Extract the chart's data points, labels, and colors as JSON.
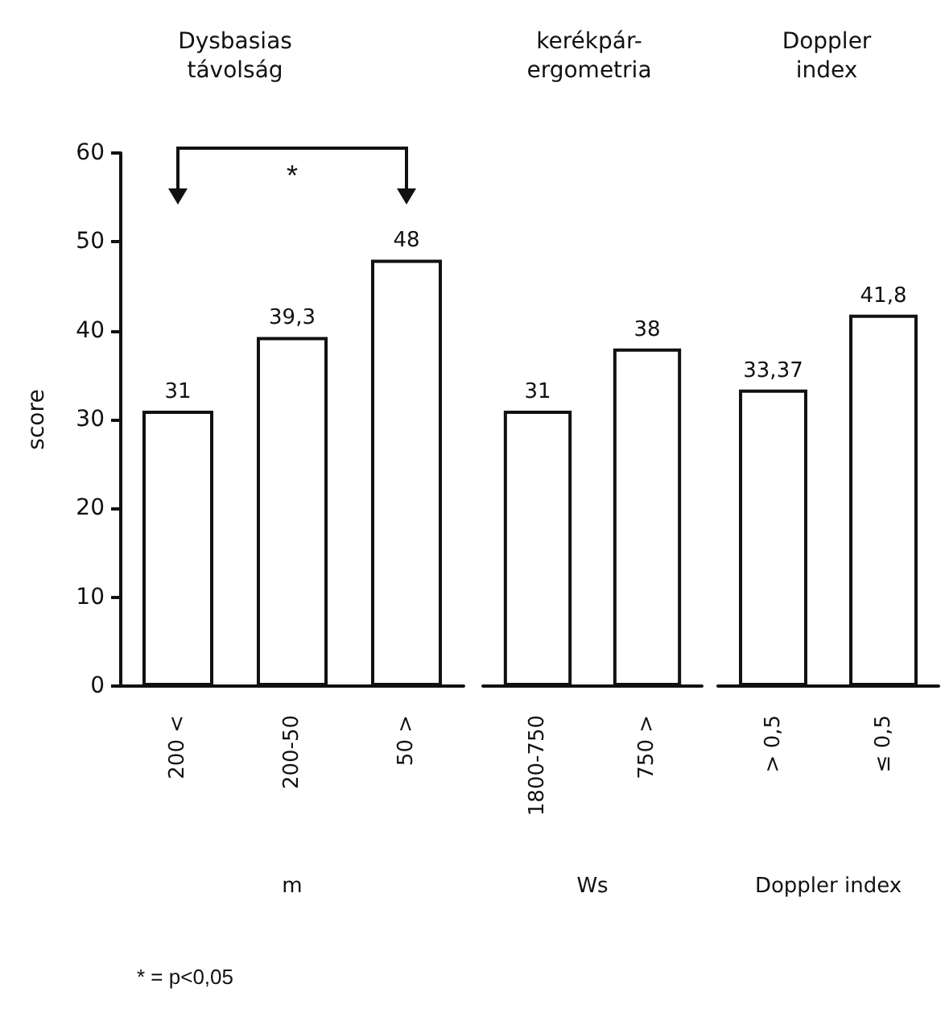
{
  "chart_data": [
    {
      "type": "bar",
      "title": "Dysbasias\ntávolság",
      "xlabel": "m",
      "ylabel": "score",
      "categories": [
        "200 <",
        "200-50",
        "50 >"
      ],
      "values": [
        31,
        39.3,
        48
      ],
      "value_labels": [
        "31",
        "39,3",
        "48"
      ],
      "color": "#ffffff",
      "ylim": [
        0,
        60
      ],
      "yticks": [
        0,
        10,
        20,
        30,
        40,
        50,
        60
      ],
      "annotations": [
        "*",
        "* = p<0,05"
      ]
    },
    {
      "type": "bar",
      "title": "kerékpár-\nergometria",
      "xlabel": "Ws",
      "categories": [
        "1800-750",
        "750 >"
      ],
      "values": [
        31,
        38
      ],
      "value_labels": [
        "31",
        "38"
      ],
      "color": "#ffffff",
      "ylim": [
        0,
        60
      ],
      "yticks": [
        0,
        10,
        20,
        30,
        40,
        50,
        60
      ],
      "tick_labels": "x"
    },
    {
      "type": "bar",
      "title": "Doppler\nindex",
      "xlabel": "Doppler index",
      "categories": [
        "> 0,5",
        "≤ 0,5"
      ],
      "values": [
        33.37,
        41.8
      ],
      "value_labels": [
        "33,37",
        "41,8"
      ],
      "color": "#ffffff",
      "ylim": [
        0,
        60
      ],
      "yticks": [
        0,
        10,
        20,
        30,
        40,
        50,
        60
      ],
      "tick_labels": "x"
    }
  ]
}
